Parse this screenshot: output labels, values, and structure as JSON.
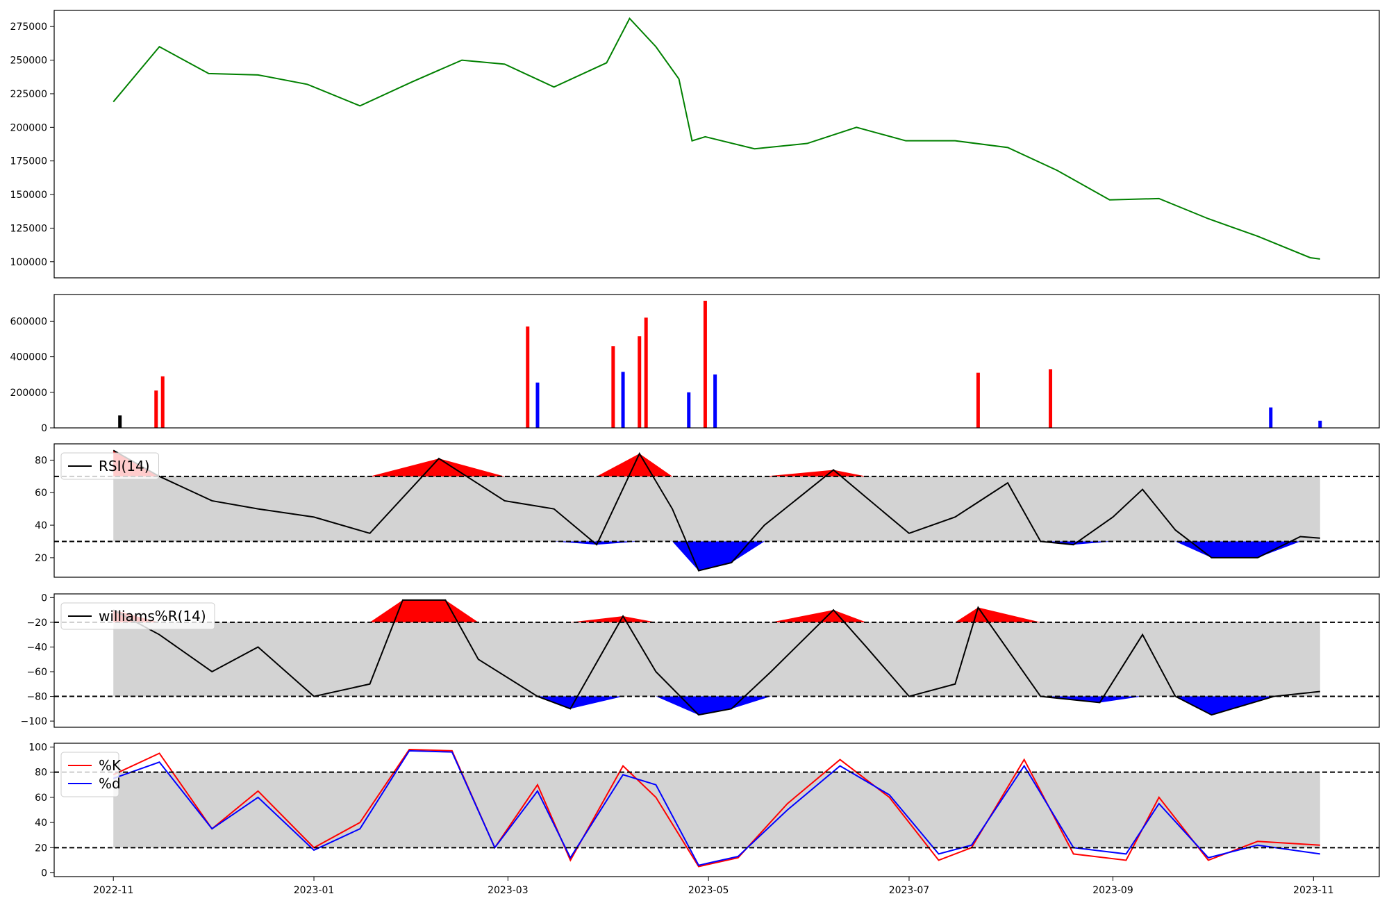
{
  "chart_data": [
    {
      "type": "line",
      "panel": "price",
      "color": "#008000",
      "ylim": [
        88000,
        287000
      ],
      "yticks": [
        100000,
        125000,
        150000,
        175000,
        200000,
        225000,
        250000,
        275000
      ],
      "ytick_labels": [
        "100000",
        "125000",
        "150000",
        "175000",
        "200000",
        "225000",
        "250000",
        "275000"
      ],
      "series": [
        {
          "x": [
            "2022-11-01",
            "2022-11-15",
            "2022-11-30",
            "2022-12-15",
            "2022-12-30",
            "2023-01-15",
            "2023-01-31",
            "2023-02-15",
            "2023-02-28",
            "2023-03-15",
            "2023-03-31",
            "2023-04-07",
            "2023-04-15",
            "2023-04-22",
            "2023-04-26",
            "2023-04-30",
            "2023-05-15",
            "2023-05-31",
            "2023-06-15",
            "2023-06-30",
            "2023-07-15",
            "2023-07-31",
            "2023-08-15",
            "2023-08-31",
            "2023-09-15",
            "2023-09-30",
            "2023-10-15",
            "2023-10-31",
            "2023-11-03"
          ],
          "values": [
            219000,
            260000,
            240000,
            239000,
            232000,
            216000,
            234000,
            250000,
            247000,
            230000,
            248000,
            281000,
            260000,
            236000,
            190000,
            193000,
            184000,
            188000,
            200000,
            190000,
            190000,
            185000,
            168000,
            146000,
            147000,
            132000,
            119000,
            103000,
            102000
          ]
        }
      ]
    },
    {
      "type": "bar",
      "panel": "volume",
      "ylim": [
        0,
        750000
      ],
      "yticks": [
        0,
        200000,
        400000,
        600000
      ],
      "ytick_labels": [
        "0",
        "200000",
        "400000",
        "600000"
      ],
      "colors": {
        "up": "#ff0000",
        "down": "#0000ff",
        "flat": "#000000"
      },
      "series": [
        {
          "x": [
            "2022-11-03",
            "2022-11-14",
            "2022-11-16",
            "2023-03-07",
            "2023-03-10",
            "2023-04-02",
            "2023-04-05",
            "2023-04-10",
            "2023-04-12",
            "2023-04-25",
            "2023-04-30",
            "2023-05-03",
            "2023-07-22",
            "2023-08-13",
            "2023-10-19",
            "2023-11-03"
          ],
          "values": [
            70000,
            210000,
            290000,
            570000,
            255000,
            460000,
            315000,
            515000,
            620000,
            200000,
            715000,
            300000,
            310000,
            330000,
            115000,
            40000
          ]
        }
      ]
    },
    {
      "type": "area",
      "panel": "rsi",
      "ylim": [
        8,
        90
      ],
      "yticks": [
        20,
        40,
        60,
        80
      ],
      "ytick_labels": [
        "20",
        "40",
        "60",
        "80"
      ],
      "band": [
        30,
        70
      ],
      "legend": "top-left",
      "series": [
        {
          "name": "RSI(14)",
          "color": "#000000",
          "x": [
            "2022-11-01",
            "2022-11-15",
            "2022-12-01",
            "2022-12-15",
            "2023-01-01",
            "2023-01-18",
            "2023-02-08",
            "2023-02-28",
            "2023-03-15",
            "2023-03-28",
            "2023-04-10",
            "2023-04-20",
            "2023-04-28",
            "2023-05-08",
            "2023-05-18",
            "2023-06-08",
            "2023-06-18",
            "2023-07-01",
            "2023-07-15",
            "2023-07-31",
            "2023-08-10",
            "2023-08-20",
            "2023-09-01",
            "2023-09-10",
            "2023-09-20",
            "2023-10-01",
            "2023-10-15",
            "2023-10-28",
            "2023-11-03"
          ],
          "values": [
            86,
            70,
            55,
            50,
            45,
            35,
            81,
            55,
            50,
            28,
            84,
            50,
            12,
            17,
            40,
            74,
            57,
            35,
            45,
            66,
            30,
            28,
            45,
            62,
            37,
            20,
            20,
            33,
            32
          ]
        }
      ]
    },
    {
      "type": "area",
      "panel": "williams",
      "ylim": [
        -105,
        3
      ],
      "yticks": [
        -100,
        -80,
        -60,
        -40,
        -20,
        0
      ],
      "ytick_labels": [
        "−100",
        "−80",
        "−60",
        "−40",
        "−20",
        "0"
      ],
      "band": [
        -80,
        -20
      ],
      "legend": "top-left",
      "series": [
        {
          "name": "williams%R(14)",
          "color": "#000000",
          "x": [
            "2022-11-01",
            "2022-11-15",
            "2022-12-01",
            "2022-12-15",
            "2023-01-01",
            "2023-01-18",
            "2023-01-28",
            "2023-02-10",
            "2023-02-20",
            "2023-03-10",
            "2023-03-20",
            "2023-04-05",
            "2023-04-15",
            "2023-04-28",
            "2023-05-08",
            "2023-05-20",
            "2023-06-08",
            "2023-06-18",
            "2023-07-01",
            "2023-07-15",
            "2023-07-22",
            "2023-08-10",
            "2023-08-28",
            "2023-09-10",
            "2023-09-20",
            "2023-10-01",
            "2023-10-20",
            "2023-11-03"
          ],
          "values": [
            -10,
            -30,
            -60,
            -40,
            -80,
            -70,
            -2,
            -2,
            -50,
            -80,
            -90,
            -15,
            -60,
            -95,
            -90,
            -60,
            -10,
            -40,
            -80,
            -70,
            -8,
            -80,
            -85,
            -30,
            -80,
            -95,
            -80,
            -76
          ]
        }
      ]
    },
    {
      "type": "line",
      "panel": "stochastic",
      "ylim": [
        -3,
        103
      ],
      "yticks": [
        0,
        20,
        40,
        60,
        80,
        100
      ],
      "ytick_labels": [
        "0",
        "20",
        "40",
        "60",
        "80",
        "100"
      ],
      "band": [
        20,
        80
      ],
      "legend": "top-left",
      "series": [
        {
          "name": "%K",
          "color": "#ff0000",
          "x": [
            "2022-11-01",
            "2022-11-15",
            "2022-12-01",
            "2022-12-15",
            "2023-01-01",
            "2023-01-15",
            "2023-01-30",
            "2023-02-12",
            "2023-02-25",
            "2023-03-10",
            "2023-03-20",
            "2023-04-05",
            "2023-04-15",
            "2023-04-28",
            "2023-05-10",
            "2023-05-25",
            "2023-06-10",
            "2023-06-25",
            "2023-07-10",
            "2023-07-20",
            "2023-08-05",
            "2023-08-20",
            "2023-09-05",
            "2023-09-15",
            "2023-09-30",
            "2023-10-15",
            "2023-11-03"
          ],
          "values": [
            78,
            95,
            35,
            65,
            20,
            40,
            98,
            97,
            20,
            70,
            10,
            85,
            60,
            5,
            12,
            55,
            90,
            60,
            10,
            20,
            90,
            15,
            10,
            60,
            10,
            25,
            22
          ]
        },
        {
          "name": "%d",
          "color": "#0000ff",
          "x": [
            "2022-11-01",
            "2022-11-15",
            "2022-12-01",
            "2022-12-15",
            "2023-01-01",
            "2023-01-15",
            "2023-01-30",
            "2023-02-12",
            "2023-02-25",
            "2023-03-10",
            "2023-03-20",
            "2023-04-05",
            "2023-04-15",
            "2023-04-28",
            "2023-05-10",
            "2023-05-25",
            "2023-06-10",
            "2023-06-25",
            "2023-07-10",
            "2023-07-20",
            "2023-08-05",
            "2023-08-20",
            "2023-09-05",
            "2023-09-15",
            "2023-09-30",
            "2023-10-15",
            "2023-11-03"
          ],
          "values": [
            75,
            88,
            35,
            60,
            18,
            35,
            97,
            96,
            20,
            65,
            12,
            78,
            70,
            6,
            13,
            50,
            85,
            62,
            15,
            22,
            85,
            20,
            15,
            55,
            12,
            22,
            15
          ]
        }
      ]
    }
  ],
  "x_axis": {
    "ticks": [
      "2022-11-01",
      "2023-01-01",
      "2023-03-01",
      "2023-05-01",
      "2023-07-01",
      "2023-09-01",
      "2023-11-01"
    ],
    "tick_labels": [
      "2022-11",
      "2023-01",
      "2023-03",
      "2023-05",
      "2023-07",
      "2023-09",
      "2023-11"
    ],
    "range": [
      "2022-10-14",
      "2023-11-21"
    ]
  }
}
